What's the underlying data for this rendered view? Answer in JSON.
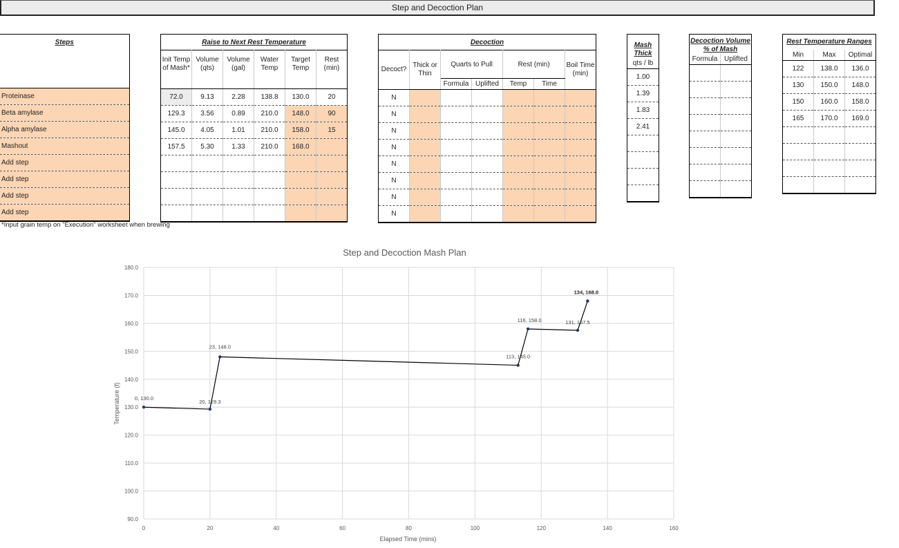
{
  "sheet": {
    "title": "Step and Decoction Plan",
    "note": "*Input grain temp on \"Execution\" worksheet when brewing"
  },
  "steps_table": {
    "header": "Steps",
    "rows": [
      "Proteinase",
      "Beta amylase",
      "Alpha amylase",
      "Mashout",
      "Add step",
      "Add step",
      "Add step",
      "Add step"
    ]
  },
  "raise_table": {
    "header": "Raise to Next Rest Temperature",
    "columns": [
      "Init Temp of Mash*",
      "Volume (qts)",
      "Volume (gal)",
      "Water Temp",
      "Target Temp",
      "Rest (min)"
    ],
    "rows": [
      [
        "72.0",
        "9.13",
        "2.28",
        "138.8",
        "130.0",
        "20"
      ],
      [
        "129.3",
        "3.56",
        "0.89",
        "210.0",
        "148.0",
        "90"
      ],
      [
        "145.0",
        "4.05",
        "1.01",
        "210.0",
        "158.0",
        "15"
      ],
      [
        "157.5",
        "5.30",
        "1.33",
        "210.0",
        "168.0",
        ""
      ],
      [
        "",
        "",
        "",
        "",
        "",
        ""
      ],
      [
        "",
        "",
        "",
        "",
        "",
        ""
      ],
      [
        "",
        "",
        "",
        "",
        "",
        ""
      ],
      [
        "",
        "",
        "",
        "",
        "",
        ""
      ]
    ]
  },
  "decoction_table": {
    "header": "Decoction",
    "col_decoct": "Decoct?",
    "col_thick": "Thick or Thin",
    "group_quarts": "Quarts to Pull",
    "group_rest": "Rest (min)",
    "col_boil": "Boil Time (min)",
    "sub_formula": "Formula",
    "sub_uplifted": "Uplifted",
    "sub_temp": "Temp",
    "sub_time": "Time",
    "rows": [
      "N",
      "N",
      "N",
      "N",
      "N",
      "N",
      "N",
      "N"
    ]
  },
  "mash_thick": {
    "header": "Mash Thick",
    "unit": "qts / lb",
    "rows": [
      "1.00",
      "1.39",
      "1.83",
      "2.41",
      "",
      "",
      "",
      ""
    ]
  },
  "decoction_volume": {
    "header": "Decoction Volume % of Mash",
    "sub_formula": "Formula",
    "sub_uplifted": "Uplifted"
  },
  "rest_ranges": {
    "header": "Rest Temperature Ranges",
    "columns": [
      "Min",
      "Max",
      "Optimal"
    ],
    "rows": [
      [
        "122",
        "138.0",
        "136.0"
      ],
      [
        "130",
        "150.0",
        "148.0"
      ],
      [
        "150",
        "160.0",
        "158.0"
      ],
      [
        "165",
        "170.0",
        "169.0"
      ],
      [
        "",
        "",
        ""
      ],
      [
        "",
        "",
        ""
      ],
      [
        "",
        "",
        ""
      ],
      [
        "",
        "",
        ""
      ]
    ]
  },
  "chart_data": {
    "type": "line",
    "title": "Step and Decoction Mash Plan",
    "xlabel": "Elapsed Time (mins)",
    "ylabel": "Temperature (f)",
    "xlim": [
      0,
      160
    ],
    "ylim": [
      90,
      180
    ],
    "xticks": [
      0,
      20,
      40,
      60,
      80,
      100,
      120,
      140,
      160
    ],
    "yticks": [
      "90.0",
      "100.0",
      "110.0",
      "120.0",
      "130.0",
      "140.0",
      "150.0",
      "160.0",
      "170.0",
      "180.0"
    ],
    "grid": true,
    "line_color": "#000000",
    "marker_color": "#1f3864",
    "points": [
      {
        "x": 0,
        "y": 130.0,
        "label": "0, 130.0"
      },
      {
        "x": 20,
        "y": 129.3,
        "label": "20, 129.3"
      },
      {
        "x": 23,
        "y": 148.0,
        "label": "23, 148.0"
      },
      {
        "x": 113,
        "y": 145.0,
        "label": "113, 145.0"
      },
      {
        "x": 116,
        "y": 158.0,
        "label": "116, 158.0"
      },
      {
        "x": 131,
        "y": 157.5,
        "label": "131, 157.5"
      },
      {
        "x": 134,
        "y": 168.0,
        "label": "134, 168.0"
      },
      {
        "x": 134,
        "y": 168.0,
        "label": "134, 168.0"
      }
    ]
  },
  "colors": {
    "input_orange": "#fcd5b4",
    "banner_gray": "#ececec",
    "grid_gray": "#d9d9d9"
  }
}
